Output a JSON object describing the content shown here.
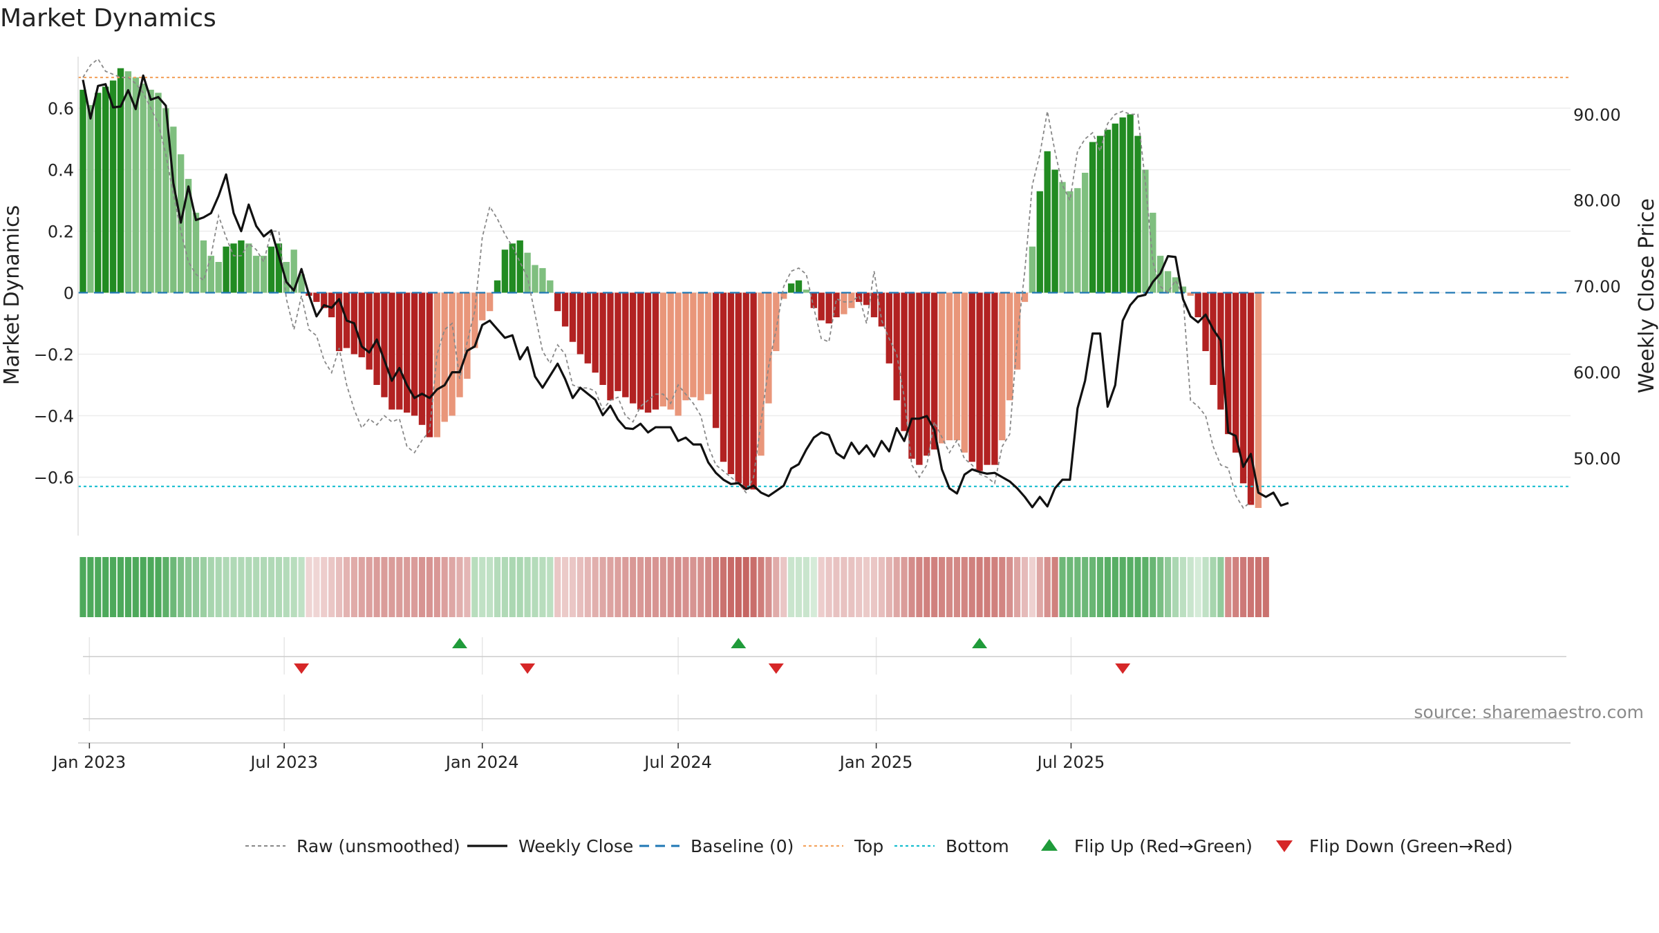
{
  "title": "Market Dynamics",
  "source": "source: sharemaestro.com",
  "colors": {
    "strong_green": "#228b22",
    "light_green": "#7fbf7f",
    "strong_red": "#b22222",
    "light_red": "#e9967a",
    "top_line": "#f4a460",
    "bottom_line": "#17becf",
    "baseline": "#1f77b4",
    "raw_line": "#888888",
    "close_line": "#111111",
    "flip_up": "#1f9b3a",
    "flip_down": "#d62728"
  },
  "chart_data": {
    "type": "bar",
    "start_date": "2022-12-26",
    "week_days": 7,
    "x_axis": {
      "ticks": [
        {
          "label": "Jan 2023",
          "date": "2023-01-01"
        },
        {
          "label": "Jul 2023",
          "date": "2023-07-01"
        },
        {
          "label": "Jan 2024",
          "date": "2024-01-01"
        },
        {
          "label": "Jul 2024",
          "date": "2024-07-01"
        },
        {
          "label": "Jan 2025",
          "date": "2025-01-01"
        },
        {
          "label": "Jul 2025",
          "date": "2025-07-01"
        }
      ]
    },
    "y_left": {
      "label": "Market Dynamics",
      "ylim": [
        -0.79,
        0.79
      ],
      "ticks": [
        0.6,
        0.4,
        0.2,
        0,
        -0.2,
        -0.4,
        -0.6
      ],
      "tick_labels": [
        "0.6",
        "0.4",
        "0.2",
        "0",
        "−0.2",
        "−0.4",
        "−0.6"
      ]
    },
    "y_right": {
      "label": "Weekly Close Price",
      "ylim": [
        41.0,
        97.5
      ],
      "ticks": [
        90,
        80,
        70,
        60,
        50
      ],
      "tick_labels": [
        "90.00",
        "80.00",
        "70.00",
        "60.00",
        "50.00"
      ]
    },
    "top_level": 0.7,
    "bottom_level": -0.63,
    "baseline_level": 0,
    "dynamics": [
      0.66,
      0.61,
      0.65,
      0.67,
      0.69,
      0.73,
      0.72,
      0.7,
      0.68,
      0.66,
      0.65,
      0.6,
      0.54,
      0.45,
      0.37,
      0.26,
      0.17,
      0.12,
      0.1,
      0.15,
      0.16,
      0.17,
      0.16,
      0.12,
      0.12,
      0.15,
      0.16,
      0.1,
      0.14,
      0.06,
      -0.01,
      -0.03,
      -0.05,
      -0.08,
      -0.19,
      -0.18,
      -0.2,
      -0.21,
      -0.25,
      -0.3,
      -0.34,
      -0.38,
      -0.38,
      -0.39,
      -0.4,
      -0.43,
      -0.47,
      -0.47,
      -0.42,
      -0.4,
      -0.34,
      -0.28,
      -0.18,
      -0.09,
      -0.06,
      0.04,
      0.14,
      0.16,
      0.17,
      0.13,
      0.09,
      0.08,
      0.04,
      -0.06,
      -0.11,
      -0.16,
      -0.2,
      -0.23,
      -0.26,
      -0.3,
      -0.35,
      -0.32,
      -0.34,
      -0.36,
      -0.38,
      -0.39,
      -0.38,
      -0.37,
      -0.38,
      -0.4,
      -0.35,
      -0.34,
      -0.35,
      -0.33,
      -0.44,
      -0.55,
      -0.59,
      -0.62,
      -0.64,
      -0.64,
      -0.53,
      -0.36,
      -0.19,
      -0.02,
      0.03,
      0.04,
      0.01,
      -0.05,
      -0.09,
      -0.1,
      -0.08,
      -0.07,
      -0.05,
      -0.03,
      -0.04,
      -0.08,
      -0.11,
      -0.23,
      -0.35,
      -0.45,
      -0.54,
      -0.56,
      -0.53,
      -0.51,
      -0.49,
      -0.48,
      -0.48,
      -0.52,
      -0.55,
      -0.58,
      -0.56,
      -0.56,
      -0.48,
      -0.35,
      -0.25,
      -0.03,
      0.15,
      0.33,
      0.46,
      0.4,
      0.36,
      0.33,
      0.34,
      0.39,
      0.49,
      0.51,
      0.53,
      0.55,
      0.57,
      0.58,
      0.51,
      0.4,
      0.26,
      0.12,
      0.07,
      0.05,
      0.02,
      -0.01,
      -0.08,
      -0.19,
      -0.3,
      -0.38,
      -0.46,
      -0.52,
      -0.62,
      -0.69,
      -0.7
    ],
    "bar_shade": [
      1,
      0,
      1,
      1,
      1,
      1,
      0,
      0,
      0,
      0,
      0,
      0,
      0,
      0,
      0,
      0,
      0,
      0,
      0,
      1,
      1,
      1,
      0,
      0,
      0,
      1,
      1,
      0,
      0,
      0,
      1,
      1,
      1,
      1,
      1,
      1,
      1,
      1,
      1,
      1,
      1,
      1,
      1,
      1,
      1,
      1,
      1,
      0,
      0,
      0,
      0,
      0,
      0,
      0,
      0,
      1,
      1,
      1,
      1,
      0,
      0,
      0,
      0,
      1,
      1,
      1,
      1,
      1,
      1,
      1,
      1,
      1,
      1,
      1,
      1,
      1,
      1,
      0,
      0,
      0,
      0,
      0,
      0,
      0,
      1,
      1,
      1,
      1,
      1,
      1,
      0,
      0,
      0,
      0,
      1,
      1,
      0,
      1,
      1,
      1,
      1,
      0,
      0,
      1,
      1,
      1,
      1,
      1,
      1,
      1,
      1,
      1,
      1,
      1,
      0,
      0,
      0,
      0,
      1,
      1,
      1,
      1,
      0,
      0,
      0,
      0,
      0,
      1,
      1,
      1,
      0,
      0,
      0,
      0,
      1,
      1,
      1,
      1,
      1,
      1,
      1,
      0,
      0,
      0,
      0,
      0,
      0,
      0,
      1,
      1,
      1,
      1,
      1,
      1,
      1,
      1
    ],
    "raw_series": [
      0.7,
      0.74,
      0.76,
      0.72,
      0.71,
      0.7,
      0.7,
      0.68,
      0.65,
      0.6,
      0.55,
      0.45,
      0.32,
      0.2,
      0.1,
      0.06,
      0.04,
      0.12,
      0.25,
      0.18,
      0.12,
      0.12,
      0.16,
      0.14,
      0.1,
      0.2,
      0.2,
      -0.02,
      -0.12,
      -0.01,
      -0.12,
      -0.14,
      -0.22,
      -0.26,
      -0.18,
      -0.3,
      -0.38,
      -0.44,
      -0.41,
      -0.43,
      -0.4,
      -0.42,
      -0.41,
      -0.5,
      -0.52,
      -0.48,
      -0.45,
      -0.2,
      -0.12,
      -0.1,
      -0.28,
      -0.16,
      -0.06,
      0.18,
      0.28,
      0.24,
      0.19,
      0.15,
      0.1,
      0.05,
      -0.07,
      -0.19,
      -0.23,
      -0.17,
      -0.2,
      -0.3,
      -0.31,
      -0.31,
      -0.32,
      -0.38,
      -0.35,
      -0.34,
      -0.4,
      -0.42,
      -0.37,
      -0.35,
      -0.33,
      -0.33,
      -0.36,
      -0.3,
      -0.33,
      -0.36,
      -0.4,
      -0.5,
      -0.56,
      -0.58,
      -0.6,
      -0.62,
      -0.65,
      -0.6,
      -0.42,
      -0.24,
      -0.12,
      0.02,
      0.07,
      0.08,
      0.06,
      -0.05,
      -0.15,
      -0.16,
      -0.02,
      -0.03,
      -0.03,
      -0.01,
      -0.1,
      0.07,
      -0.09,
      -0.15,
      -0.2,
      -0.34,
      -0.56,
      -0.6,
      -0.56,
      -0.42,
      -0.47,
      -0.52,
      -0.48,
      -0.54,
      -0.56,
      -0.59,
      -0.6,
      -0.62,
      -0.5,
      -0.46,
      -0.15,
      0.07,
      0.35,
      0.45,
      0.59,
      0.46,
      0.35,
      0.3,
      0.46,
      0.5,
      0.52,
      0.46,
      0.55,
      0.58,
      0.59,
      0.58,
      0.58,
      0.36,
      0.1,
      0.02,
      0.0,
      0.04,
      -0.01,
      -0.35,
      -0.37,
      -0.4,
      -0.5,
      -0.56,
      -0.57,
      -0.66,
      -0.7,
      -0.68
    ],
    "close_series": [
      94.0,
      89.5,
      93.3,
      93.5,
      90.8,
      90.9,
      92.8,
      90.6,
      94.5,
      91.7,
      92.0,
      91.0,
      82.0,
      77.4,
      81.6,
      77.7,
      78.0,
      78.5,
      80.5,
      83.0,
      78.5,
      76.4,
      79.5,
      77.0,
      75.8,
      76.5,
      73.5,
      70.5,
      69.5,
      72.0,
      69.0,
      66.5,
      67.8,
      67.5,
      68.5,
      66.0,
      65.7,
      63.0,
      62.3,
      63.8,
      61.4,
      59.0,
      60.5,
      58.5,
      57.0,
      57.5,
      57.0,
      58.0,
      58.5,
      60.0,
      60.0,
      62.5,
      63.0,
      65.5,
      66.0,
      65.0,
      64.0,
      64.3,
      61.5,
      62.9,
      59.5,
      58.2,
      59.6,
      61.0,
      59.2,
      57.0,
      58.2,
      57.5,
      56.8,
      55.0,
      56.1,
      54.5,
      53.5,
      53.4,
      54.0,
      53.0,
      53.6,
      53.6,
      53.6,
      52.0,
      52.4,
      51.6,
      51.6,
      49.5,
      48.3,
      47.5,
      47.0,
      47.1,
      46.4,
      46.8,
      46.0,
      45.6,
      46.2,
      46.8,
      48.8,
      49.3,
      51.0,
      52.4,
      53.0,
      52.7,
      50.6,
      50.0,
      51.8,
      50.5,
      51.5,
      50.2,
      52.0,
      50.8,
      53.5,
      52.0,
      54.6,
      54.6,
      54.9,
      53.3,
      48.7,
      46.5,
      45.9,
      48.1,
      48.7,
      48.4,
      48.2,
      48.3,
      47.8,
      47.3,
      46.5,
      45.5,
      44.3,
      45.5,
      44.4,
      46.5,
      47.5,
      47.5,
      55.8,
      59.0,
      64.5,
      64.5,
      56.0,
      58.5,
      66.0,
      67.8,
      68.8,
      69.0,
      70.5,
      71.5,
      73.5,
      73.4,
      68.5,
      66.5,
      65.8,
      66.7,
      65.0,
      63.7,
      53.0,
      52.6,
      49.0,
      50.5,
      46.0,
      45.5,
      46.0,
      44.5,
      44.8
    ],
    "strip_intensity": [
      0.85,
      0.85,
      0.85,
      0.85,
      0.85,
      0.85,
      0.85,
      0.85,
      0.85,
      0.85,
      0.85,
      0.78,
      0.7,
      0.62,
      0.56,
      0.52,
      0.48,
      0.42,
      0.4,
      0.38,
      0.38,
      0.38,
      0.38,
      0.38,
      0.38,
      0.38,
      0.38,
      0.36,
      0.34,
      0.3,
      0.22,
      0.22,
      0.26,
      0.3,
      0.34,
      0.4,
      0.44,
      0.48,
      0.5,
      0.52,
      0.52,
      0.52,
      0.52,
      0.52,
      0.52,
      0.56,
      0.56,
      0.54,
      0.5,
      0.46,
      0.42,
      0.38,
      0.34,
      0.3,
      0.3,
      0.36,
      0.38,
      0.4,
      0.4,
      0.38,
      0.36,
      0.34,
      0.32,
      0.3,
      0.28,
      0.3,
      0.34,
      0.38,
      0.42,
      0.46,
      0.48,
      0.5,
      0.52,
      0.54,
      0.54,
      0.56,
      0.56,
      0.56,
      0.58,
      0.6,
      0.58,
      0.56,
      0.58,
      0.62,
      0.68,
      0.74,
      0.78,
      0.8,
      0.8,
      0.76,
      0.68,
      0.58,
      0.44,
      0.3,
      0.26,
      0.26,
      0.26,
      0.2,
      0.26,
      0.3,
      0.32,
      0.32,
      0.32,
      0.3,
      0.28,
      0.3,
      0.34,
      0.4,
      0.46,
      0.52,
      0.6,
      0.64,
      0.66,
      0.66,
      0.64,
      0.62,
      0.62,
      0.64,
      0.66,
      0.68,
      0.68,
      0.66,
      0.64,
      0.58,
      0.48,
      0.36,
      0.24,
      0.46,
      0.58,
      0.66,
      0.7,
      0.7,
      0.7,
      0.7,
      0.72,
      0.76,
      0.8,
      0.8,
      0.8,
      0.8,
      0.8,
      0.78,
      0.72,
      0.64,
      0.52,
      0.4,
      0.32,
      0.26,
      0.2,
      0.3,
      0.42,
      0.52,
      0.6,
      0.66,
      0.7,
      0.72,
      0.74,
      0.74
    ],
    "strip_sign": [
      1,
      1,
      1,
      1,
      1,
      1,
      1,
      1,
      1,
      1,
      1,
      1,
      1,
      1,
      1,
      1,
      1,
      1,
      1,
      1,
      1,
      1,
      1,
      1,
      1,
      1,
      1,
      1,
      1,
      1,
      -1,
      -1,
      -1,
      -1,
      -1,
      -1,
      -1,
      -1,
      -1,
      -1,
      -1,
      -1,
      -1,
      -1,
      -1,
      -1,
      -1,
      -1,
      -1,
      -1,
      -1,
      -1,
      1,
      1,
      1,
      1,
      1,
      1,
      1,
      1,
      1,
      1,
      1,
      -1,
      -1,
      -1,
      -1,
      -1,
      -1,
      -1,
      -1,
      -1,
      -1,
      -1,
      -1,
      -1,
      -1,
      -1,
      -1,
      -1,
      -1,
      -1,
      -1,
      -1,
      -1,
      -1,
      -1,
      -1,
      -1,
      -1,
      -1,
      -1,
      -1,
      -1,
      1,
      1,
      1,
      1,
      -1,
      -1,
      -1,
      -1,
      -1,
      -1,
      -1,
      -1,
      -1,
      -1,
      -1,
      -1,
      -1,
      -1,
      -1,
      -1,
      -1,
      -1,
      -1,
      -1,
      -1,
      -1,
      -1,
      -1,
      -1,
      -1,
      -1,
      -1,
      -1,
      -1,
      -1,
      -1,
      1,
      1,
      1,
      1,
      1,
      1,
      1,
      1,
      1,
      1,
      1,
      1,
      1,
      1,
      1,
      1,
      1,
      1,
      1,
      1,
      1,
      1,
      -1,
      -1,
      -1,
      -1,
      -1,
      -1,
      -1,
      -1,
      -1,
      -1,
      -1
    ],
    "flips_up": [
      "2023-12-11",
      "2024-08-26",
      "2025-04-07"
    ],
    "flips_down": [
      "2023-07-17",
      "2024-02-12",
      "2024-09-30",
      "2025-08-18"
    ],
    "legend": [
      {
        "label": "Raw (unsmoothed)",
        "kind": "raw"
      },
      {
        "label": "Weekly Close",
        "kind": "close"
      },
      {
        "label": "Baseline (0)",
        "kind": "baseline"
      },
      {
        "label": "Top",
        "kind": "top"
      },
      {
        "label": "Bottom",
        "kind": "bottom"
      },
      {
        "label": "Flip Up (Red→Green)",
        "kind": "flip_up"
      },
      {
        "label": "Flip Down (Green→Red)",
        "kind": "flip_down"
      }
    ]
  }
}
